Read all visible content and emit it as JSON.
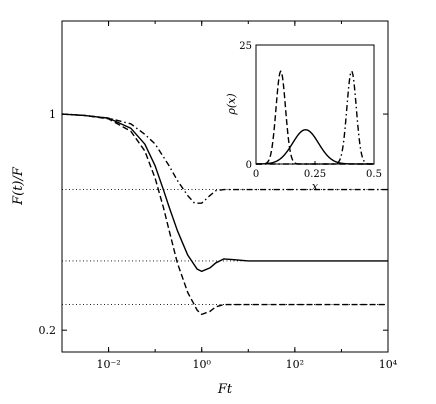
{
  "chart_data": [
    {
      "type": "line",
      "xlabel": "Ft",
      "ylabel": "F(t)/F",
      "xscale": "log",
      "yscale": "log",
      "xlim": [
        0.001,
        10000
      ],
      "ylim": [
        0.17,
        2.0
      ],
      "xticks": [
        0.01,
        1,
        100,
        10000
      ],
      "xticklabels": [
        "10⁻²",
        "10⁰",
        "10²",
        "10⁴"
      ],
      "yticks": [
        0.2,
        1
      ],
      "yticklabels": [
        "0.2",
        "1"
      ],
      "grid": false,
      "series": [
        {
          "style": "solid",
          "x": [
            0.001,
            0.003,
            0.01,
            0.03,
            0.06,
            0.1,
            0.15,
            0.2,
            0.3,
            0.5,
            0.8,
            1.0,
            1.5,
            2.0,
            3.0,
            5.0,
            10,
            30,
            100,
            1000,
            10000
          ],
          "y": [
            1.0,
            0.99,
            0.97,
            0.9,
            0.8,
            0.68,
            0.57,
            0.5,
            0.42,
            0.35,
            0.315,
            0.31,
            0.318,
            0.33,
            0.34,
            0.338,
            0.335,
            0.335,
            0.335,
            0.335,
            0.335
          ]
        },
        {
          "style": "dashed",
          "x": [
            0.001,
            0.003,
            0.01,
            0.03,
            0.06,
            0.1,
            0.15,
            0.2,
            0.3,
            0.5,
            0.8,
            1.0,
            1.5,
            2.0,
            3.0,
            5.0,
            10,
            30,
            100,
            1000,
            10000
          ],
          "y": [
            1.0,
            0.99,
            0.965,
            0.88,
            0.76,
            0.62,
            0.5,
            0.42,
            0.33,
            0.265,
            0.232,
            0.225,
            0.23,
            0.238,
            0.242,
            0.242,
            0.242,
            0.242,
            0.242,
            0.242,
            0.242
          ]
        },
        {
          "style": "dashdot",
          "x": [
            0.001,
            0.003,
            0.01,
            0.03,
            0.06,
            0.1,
            0.2,
            0.3,
            0.5,
            0.7,
            1.0,
            1.5,
            2.0,
            3.0,
            5.0,
            10,
            30,
            100,
            1000,
            10000
          ],
          "y": [
            1.0,
            0.99,
            0.97,
            0.93,
            0.86,
            0.8,
            0.68,
            0.61,
            0.545,
            0.515,
            0.515,
            0.545,
            0.565,
            0.57,
            0.57,
            0.57,
            0.57,
            0.57,
            0.57,
            0.57
          ]
        }
      ],
      "reference_lines": [
        {
          "style": "dotted",
          "y": 0.57
        },
        {
          "style": "dotted",
          "y": 0.335
        },
        {
          "style": "dotted",
          "y": 0.242
        }
      ]
    },
    {
      "type": "line",
      "inset": true,
      "xlabel": "x",
      "ylabel": "ρ(x)",
      "xlim": [
        0,
        0.5
      ],
      "ylim": [
        0,
        25
      ],
      "xticks": [
        0,
        0.25,
        0.5
      ],
      "xticklabels": [
        "0",
        "0.25",
        "0.5"
      ],
      "yticks": [
        0,
        25
      ],
      "yticklabels": [
        "0",
        "25"
      ],
      "series": [
        {
          "style": "solid",
          "shape": "gaussian",
          "center": 0.21,
          "peak": 7.2,
          "width": 0.055
        },
        {
          "style": "dashed",
          "shape": "gaussian",
          "center": 0.105,
          "peak": 19.5,
          "width": 0.02
        },
        {
          "style": "dashdot",
          "shape": "gaussian",
          "center": 0.405,
          "peak": 19.5,
          "width": 0.02
        }
      ]
    }
  ]
}
